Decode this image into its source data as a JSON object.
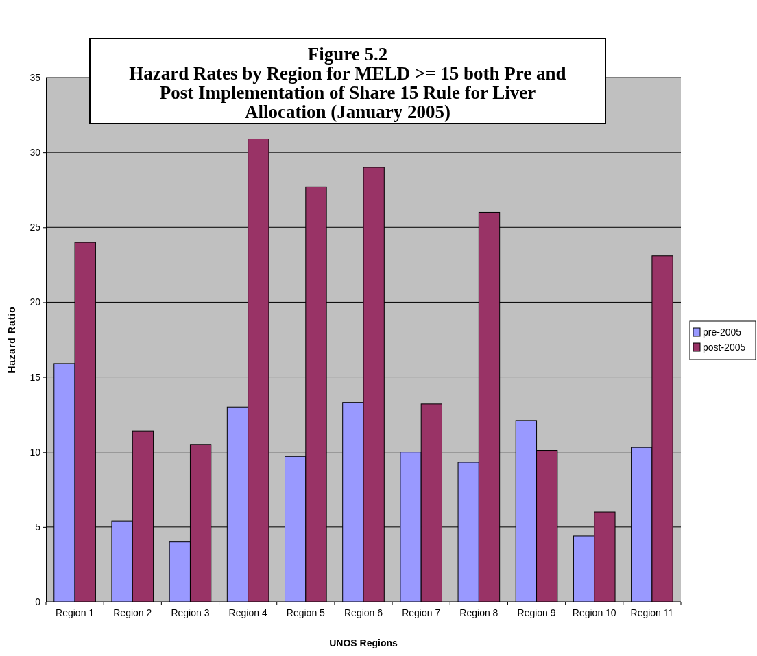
{
  "chart_data": {
    "type": "bar",
    "title": "Figure 5.2\nHazard Rates by Region for MELD >= 15 both Pre and\nPost Implementation of Share 15 Rule for Liver\nAllocation (January 2005)",
    "xlabel": "UNOS Regions",
    "ylabel": "Hazard Ratio",
    "categories": [
      "Region 1",
      "Region 2",
      "Region 3",
      "Region 4",
      "Region 5",
      "Region 6",
      "Region 7",
      "Region 8",
      "Region 9",
      "Region 10",
      "Region 11"
    ],
    "series": [
      {
        "name": "pre-2005",
        "color": "#9999ff",
        "values": [
          15.9,
          5.4,
          4.0,
          13.0,
          9.7,
          13.3,
          10.0,
          9.3,
          12.1,
          4.4,
          10.3
        ]
      },
      {
        "name": "post-2005",
        "color": "#993366",
        "values": [
          24.0,
          11.4,
          10.5,
          30.9,
          27.7,
          29.0,
          13.2,
          26.0,
          10.1,
          6.0,
          23.1
        ]
      }
    ],
    "ylim": [
      0,
      35
    ],
    "yticks": [
      0,
      5,
      10,
      15,
      20,
      25,
      30,
      35
    ],
    "grid": "y",
    "legend": "right"
  }
}
